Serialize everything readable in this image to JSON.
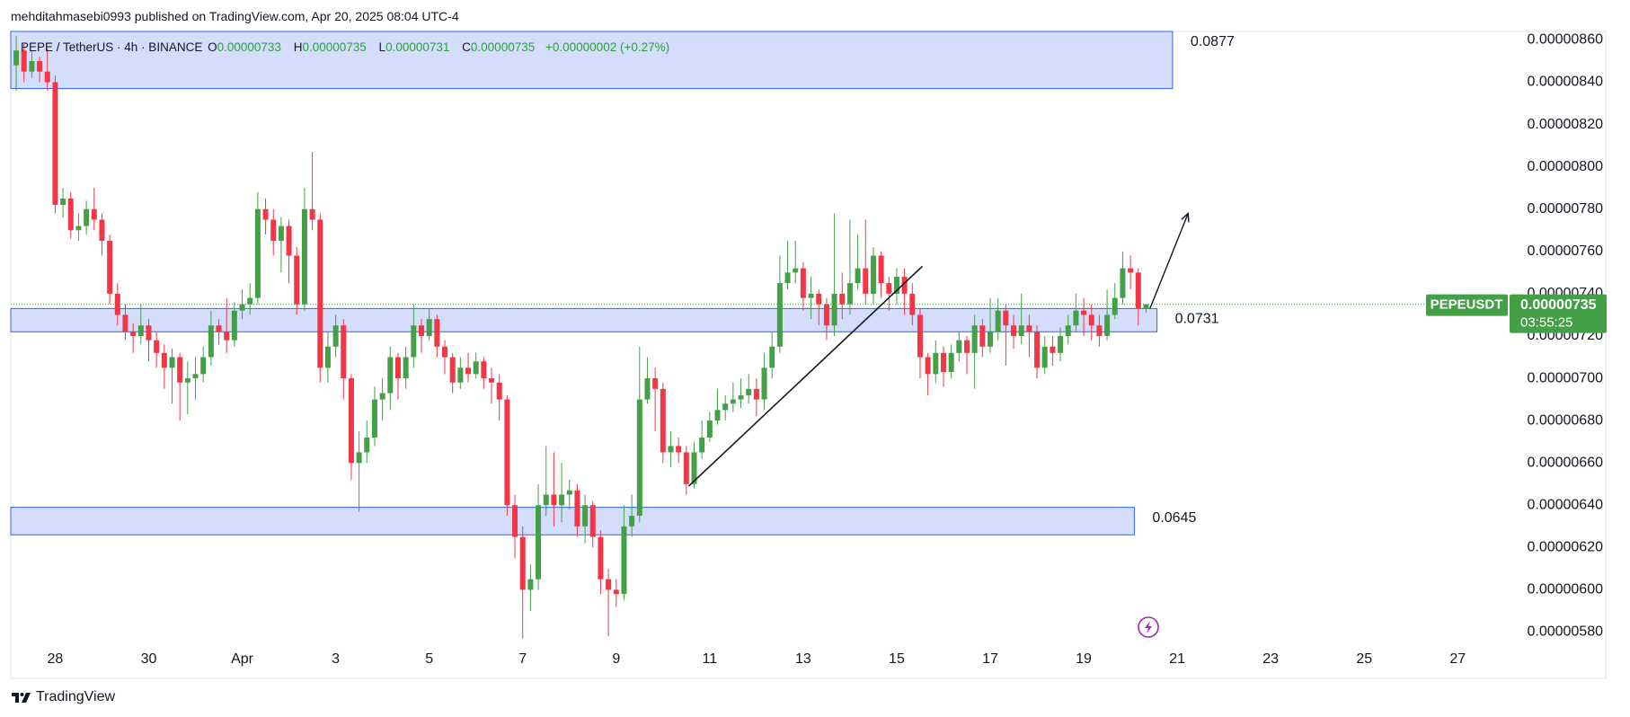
{
  "header": "mehditahmasebi0993 published on TradingView.com, Apr 20, 2025 08:04 UTC-4",
  "footer": "TradingView",
  "chart_data": {
    "type": "candlestick",
    "legend": {
      "symbol": "PEPE / TetherUS · 4h · BINANCE",
      "fields": [
        {
          "key": "O",
          "value": "0.00000733"
        },
        {
          "key": "H",
          "value": "0.00000735"
        },
        {
          "key": "L",
          "value": "0.00000731"
        },
        {
          "key": "C",
          "value": "0.00000735"
        }
      ],
      "change": "+0.00000002 (+0.27%)"
    },
    "up_color": "#43a047",
    "down_color": "#f23645",
    "open": [
      8.48e-06,
      8.55e-06,
      8.45e-06,
      8.5e-06,
      8.45e-06,
      8.4e-06,
      7.82e-06,
      7.85e-06,
      7.7e-06,
      7.72e-06,
      7.8e-06,
      7.75e-06,
      7.65e-06,
      7.4e-06,
      7.3e-06,
      7.22e-06,
      7.2e-06,
      7.25e-06,
      7.18e-06,
      7.12e-06,
      7.05e-06,
      7.1e-06,
      6.98e-06,
      7e-06,
      7.02e-06,
      7.1e-06,
      7.25e-06,
      7.22e-06,
      7.18e-06,
      7.32e-06,
      7.35e-06,
      7.38e-06,
      7.8e-06,
      7.75e-06,
      7.65e-06,
      7.72e-06,
      7.58e-06,
      7.35e-06,
      7.8e-06,
      7.75e-06,
      7.05e-06,
      7.15e-06,
      7.25e-06,
      7e-06,
      6.6e-06,
      6.65e-06,
      6.72e-06,
      6.9e-06,
      6.93e-06,
      7.1e-06,
      7e-06,
      7.1e-06,
      7.25e-06,
      7.2e-06,
      7.28e-06,
      7.15e-06,
      7.1e-06,
      6.98e-06,
      7.05e-06,
      7.02e-06,
      7.08e-06,
      7e-06,
      6.98e-06,
      6.9e-06,
      6.4e-06,
      6.25e-06,
      6e-06,
      6.05e-06,
      6.4e-06,
      6.45e-06,
      6.4e-06,
      6.45e-06,
      6.47e-06,
      6.3e-06,
      6.4e-06,
      6.25e-06,
      6.05e-06,
      6e-06,
      5.98e-06,
      6.3e-06,
      6.35e-06,
      6.9e-06,
      7e-06,
      6.95e-06,
      6.65e-06,
      6.68e-06,
      6.65e-06,
      6.5e-06,
      6.65e-06,
      6.72e-06,
      6.8e-06,
      6.85e-06,
      6.88e-06,
      6.9e-06,
      6.92e-06,
      6.95e-06,
      6.9e-06,
      7.05e-06,
      7.15e-06,
      7.45e-06,
      7.5e-06,
      7.52e-06,
      7.38e-06,
      7.4e-06,
      7.35e-06,
      7.25e-06,
      7.4e-06,
      7.35e-06,
      7.45e-06,
      7.52e-06,
      7.4e-06,
      7.58e-06,
      7.45e-06,
      7.4e-06,
      7.48e-06,
      7.4e-06,
      7.3e-06,
      7.1e-06,
      7.02e-06,
      7.12e-06,
      7.03e-06,
      7.12e-06,
      7.18e-06,
      7.12e-06,
      7.25e-06,
      7.15e-06,
      7.22e-06,
      7.32e-06,
      7.25e-06,
      7.2e-06,
      7.25e-06,
      7.22e-06,
      7.05e-06,
      7.15e-06,
      7.12e-06,
      7.2e-06,
      7.25e-06,
      7.32e-06,
      7.3e-06,
      7.25e-06,
      7.2e-06,
      7.3e-06,
      7.38e-06,
      7.52e-06,
      7.5e-06,
      7.33e-06
    ],
    "high": [
      8.62e-06,
      8.58e-06,
      8.55e-06,
      8.52e-06,
      8.56e-06,
      8.43e-06,
      7.9e-06,
      7.88e-06,
      7.78e-06,
      7.84e-06,
      7.9e-06,
      7.78e-06,
      7.68e-06,
      7.45e-06,
      7.35e-06,
      7.26e-06,
      7.35e-06,
      7.28e-06,
      7.22e-06,
      7.16e-06,
      7.14e-06,
      7.12e-06,
      7.08e-06,
      7.1e-06,
      7.15e-06,
      7.32e-06,
      7.28e-06,
      7.38e-06,
      7.36e-06,
      7.42e-06,
      7.45e-06,
      7.88e-06,
      7.85e-06,
      7.8e-06,
      7.76e-06,
      7.75e-06,
      7.62e-06,
      7.9e-06,
      8.07e-06,
      7.78e-06,
      7.22e-06,
      7.3e-06,
      7.28e-06,
      7.02e-06,
      6.75e-06,
      6.8e-06,
      6.96e-06,
      7e-06,
      7.15e-06,
      7.12e-06,
      7.15e-06,
      7.35e-06,
      7.28e-06,
      7.33e-06,
      7.3e-06,
      7.18e-06,
      7.12e-06,
      7.1e-06,
      7.12e-06,
      7.12e-06,
      7.1e-06,
      7.05e-06,
      7.02e-06,
      6.92e-06,
      6.45e-06,
      6.3e-06,
      6.12e-06,
      6.5e-06,
      6.68e-06,
      6.65e-06,
      6.6e-06,
      6.52e-06,
      6.5e-06,
      6.45e-06,
      6.42e-06,
      6.28e-06,
      6.1e-06,
      6.05e-06,
      6.4e-06,
      6.45e-06,
      7.15e-06,
      7.1e-06,
      7.05e-06,
      6.98e-06,
      6.75e-06,
      6.72e-06,
      6.68e-06,
      6.7e-06,
      6.8e-06,
      6.84e-06,
      6.95e-06,
      6.92e-06,
      6.98e-06,
      7e-06,
      7.02e-06,
      7e-06,
      7.12e-06,
      7.22e-06,
      7.58e-06,
      7.65e-06,
      7.65e-06,
      7.55e-06,
      7.48e-06,
      7.42e-06,
      7.38e-06,
      7.78e-06,
      7.5e-06,
      7.75e-06,
      7.68e-06,
      7.75e-06,
      7.62e-06,
      7.6e-06,
      7.48e-06,
      7.52e-06,
      7.52e-06,
      7.45e-06,
      7.33e-06,
      7.12e-06,
      7.18e-06,
      7.15e-06,
      7.16e-06,
      7.22e-06,
      7.2e-06,
      7.3e-06,
      7.28e-06,
      7.38e-06,
      7.38e-06,
      7.35e-06,
      7.3e-06,
      7.4e-06,
      7.3e-06,
      7.25e-06,
      7.2e-06,
      7.2e-06,
      7.24e-06,
      7.3e-06,
      7.4e-06,
      7.38e-06,
      7.35e-06,
      7.3e-06,
      7.42e-06,
      7.45e-06,
      7.6e-06,
      7.58e-06,
      7.52e-06,
      7.35e-06
    ],
    "low": [
      8.36e-06,
      8.4e-06,
      8.42e-06,
      8.4e-06,
      8.36e-06,
      7.78e-06,
      7.76e-06,
      7.66e-06,
      7.65e-06,
      7.68e-06,
      7.7e-06,
      7.58e-06,
      7.35e-06,
      7.25e-06,
      7.18e-06,
      7.12e-06,
      7.16e-06,
      7.08e-06,
      7.05e-06,
      6.95e-06,
      6.88e-06,
      6.8e-06,
      6.83e-06,
      6.9e-06,
      6.98e-06,
      7.06e-06,
      7.16e-06,
      7.12e-06,
      7.15e-06,
      7.28e-06,
      7.3e-06,
      7.35e-06,
      7.68e-06,
      7.58e-06,
      7.5e-06,
      7.45e-06,
      7.3e-06,
      7.32e-06,
      7.7e-06,
      6.98e-06,
      6.98e-06,
      7.1e-06,
      6.9e-06,
      6.52e-06,
      6.37e-06,
      6.6e-06,
      6.68e-06,
      6.8e-06,
      6.85e-06,
      6.9e-06,
      6.95e-06,
      7.05e-06,
      7.12e-06,
      7.18e-06,
      7.1e-06,
      7.02e-06,
      6.93e-06,
      6.95e-06,
      6.98e-06,
      7e-06,
      6.95e-06,
      6.88e-06,
      6.8e-06,
      6.35e-06,
      6.15e-06,
      5.77e-06,
      5.9e-06,
      6e-06,
      6.35e-06,
      6.3e-06,
      6.32e-06,
      6.38e-06,
      6.25e-06,
      6.22e-06,
      6.2e-06,
      5.98e-06,
      5.78e-06,
      5.92e-06,
      5.95e-06,
      6.25e-06,
      6.32e-06,
      6.88e-06,
      6.75e-06,
      6.6e-06,
      6.58e-06,
      6.6e-06,
      6.45e-06,
      6.48e-06,
      6.62e-06,
      6.7e-06,
      6.78e-06,
      6.8e-06,
      6.84e-06,
      6.86e-06,
      6.88e-06,
      6.82e-06,
      6.85e-06,
      7e-06,
      7.12e-06,
      7.42e-06,
      7.45e-06,
      7.32e-06,
      7.28e-06,
      7.25e-06,
      7.18e-06,
      7.2e-06,
      7.28e-06,
      7.3e-06,
      7.42e-06,
      7.35e-06,
      7.35e-06,
      7.38e-06,
      7.32e-06,
      7.35e-06,
      7.3e-06,
      7.25e-06,
      7e-06,
      6.92e-06,
      6.98e-06,
      6.96e-06,
      7e-06,
      7.08e-06,
      7.02e-06,
      6.95e-06,
      7.1e-06,
      7.12e-06,
      7.18e-06,
      7.06e-06,
      7.14e-06,
      7.16e-06,
      7.1e-06,
      7e-06,
      7.02e-06,
      7.06e-06,
      7.08e-06,
      7.16e-06,
      7.22e-06,
      7.2e-06,
      7.18e-06,
      7.15e-06,
      7.18e-06,
      7.28e-06,
      7.35e-06,
      7.42e-06,
      7.25e-06,
      7.31e-06
    ],
    "close": [
      8.55e-06,
      8.45e-06,
      8.5e-06,
      8.45e-06,
      8.4e-06,
      7.82e-06,
      7.85e-06,
      7.7e-06,
      7.72e-06,
      7.8e-06,
      7.75e-06,
      7.65e-06,
      7.4e-06,
      7.3e-06,
      7.22e-06,
      7.2e-06,
      7.25e-06,
      7.18e-06,
      7.12e-06,
      7.05e-06,
      7.1e-06,
      6.98e-06,
      7e-06,
      7.02e-06,
      7.1e-06,
      7.25e-06,
      7.22e-06,
      7.18e-06,
      7.32e-06,
      7.35e-06,
      7.38e-06,
      7.8e-06,
      7.75e-06,
      7.65e-06,
      7.72e-06,
      7.58e-06,
      7.35e-06,
      7.8e-06,
      7.75e-06,
      7.05e-06,
      7.15e-06,
      7.25e-06,
      7e-06,
      6.6e-06,
      6.65e-06,
      6.72e-06,
      6.9e-06,
      6.93e-06,
      7.1e-06,
      7e-06,
      7.1e-06,
      7.25e-06,
      7.2e-06,
      7.28e-06,
      7.15e-06,
      7.1e-06,
      6.98e-06,
      7.05e-06,
      7.02e-06,
      7.08e-06,
      7e-06,
      6.98e-06,
      6.9e-06,
      6.4e-06,
      6.25e-06,
      6e-06,
      6.05e-06,
      6.4e-06,
      6.45e-06,
      6.4e-06,
      6.45e-06,
      6.47e-06,
      6.3e-06,
      6.4e-06,
      6.25e-06,
      6.05e-06,
      6e-06,
      5.98e-06,
      6.3e-06,
      6.35e-06,
      6.9e-06,
      7e-06,
      6.95e-06,
      6.65e-06,
      6.68e-06,
      6.65e-06,
      6.5e-06,
      6.65e-06,
      6.72e-06,
      6.8e-06,
      6.85e-06,
      6.88e-06,
      6.9e-06,
      6.92e-06,
      6.95e-06,
      6.9e-06,
      7.05e-06,
      7.15e-06,
      7.45e-06,
      7.5e-06,
      7.52e-06,
      7.38e-06,
      7.4e-06,
      7.35e-06,
      7.25e-06,
      7.4e-06,
      7.35e-06,
      7.45e-06,
      7.52e-06,
      7.4e-06,
      7.58e-06,
      7.45e-06,
      7.4e-06,
      7.48e-06,
      7.4e-06,
      7.3e-06,
      7.1e-06,
      7.02e-06,
      7.12e-06,
      7.03e-06,
      7.12e-06,
      7.18e-06,
      7.12e-06,
      7.25e-06,
      7.15e-06,
      7.22e-06,
      7.32e-06,
      7.25e-06,
      7.2e-06,
      7.25e-06,
      7.22e-06,
      7.05e-06,
      7.15e-06,
      7.12e-06,
      7.2e-06,
      7.25e-06,
      7.32e-06,
      7.3e-06,
      7.25e-06,
      7.2e-06,
      7.3e-06,
      7.38e-06,
      7.52e-06,
      7.5e-06,
      7.33e-06,
      7.35e-06
    ],
    "xlim": [
      -0.7,
      192
    ],
    "xticks": [
      {
        "value": 5,
        "label": "28"
      },
      {
        "value": 17,
        "label": "30"
      },
      {
        "value": 29,
        "label": "Apr"
      },
      {
        "value": 41,
        "label": "3"
      },
      {
        "value": 53,
        "label": "5"
      },
      {
        "value": 65,
        "label": "7"
      },
      {
        "value": 77,
        "label": "9"
      },
      {
        "value": 89,
        "label": "11"
      },
      {
        "value": 101,
        "label": "13"
      },
      {
        "value": 113,
        "label": "15"
      },
      {
        "value": 125,
        "label": "17"
      },
      {
        "value": 137,
        "label": "19"
      },
      {
        "value": 149,
        "label": "21"
      },
      {
        "value": 161,
        "label": "23"
      },
      {
        "value": 173,
        "label": "25"
      },
      {
        "value": 185,
        "label": "27"
      }
    ],
    "ylim": [
      5.73e-06,
      8.64e-06
    ],
    "yticks": [
      {
        "value": 5.8e-06,
        "label": "0.00000580"
      },
      {
        "value": 6e-06,
        "label": "0.00000600"
      },
      {
        "value": 6.2e-06,
        "label": "0.00000620"
      },
      {
        "value": 6.4e-06,
        "label": "0.00000640"
      },
      {
        "value": 6.6e-06,
        "label": "0.00000660"
      },
      {
        "value": 6.8e-06,
        "label": "0.00000680"
      },
      {
        "value": 7e-06,
        "label": "0.00000700"
      },
      {
        "value": 7.2e-06,
        "label": "0.00000720"
      },
      {
        "value": 7.4e-06,
        "label": "0.00000740"
      },
      {
        "value": 7.6e-06,
        "label": "0.00000760"
      },
      {
        "value": 7.8e-06,
        "label": "0.00000780"
      },
      {
        "value": 8e-06,
        "label": "0.00000800"
      },
      {
        "value": 8.2e-06,
        "label": "0.00000820"
      },
      {
        "value": 8.4e-06,
        "label": "0.00000840"
      },
      {
        "value": 8.6e-06,
        "label": "0.00000860"
      }
    ],
    "grid": false,
    "zone_fill": "#d4defc",
    "zone_stroke": "#2962ff",
    "zones": [
      {
        "label": "0.0877",
        "xlim": [
          -0.7,
          148.4
        ],
        "ylim": [
          8.37e-06,
          8.64e-06
        ]
      },
      {
        "label": "0.0731",
        "xlim": [
          -0.7,
          146.4
        ],
        "ylim": [
          7.22e-06,
          7.33e-06
        ]
      },
      {
        "label": "0.0645",
        "xlim": [
          -0.7,
          143.5
        ],
        "ylim": [
          6.26e-06,
          6.39e-06
        ]
      }
    ],
    "trendline": {
      "x": [
        86.3,
        116.3
      ],
      "y": [
        6.49e-06,
        7.53e-06
      ]
    },
    "arrow": {
      "x": [
        145.5,
        150.4
      ],
      "y": [
        7.33e-06,
        7.78e-06
      ]
    },
    "last_price": {
      "value": 7.35e-06,
      "label": "0.00000735",
      "symbol": "PEPEUSDT",
      "countdown": "03:55:25"
    }
  }
}
